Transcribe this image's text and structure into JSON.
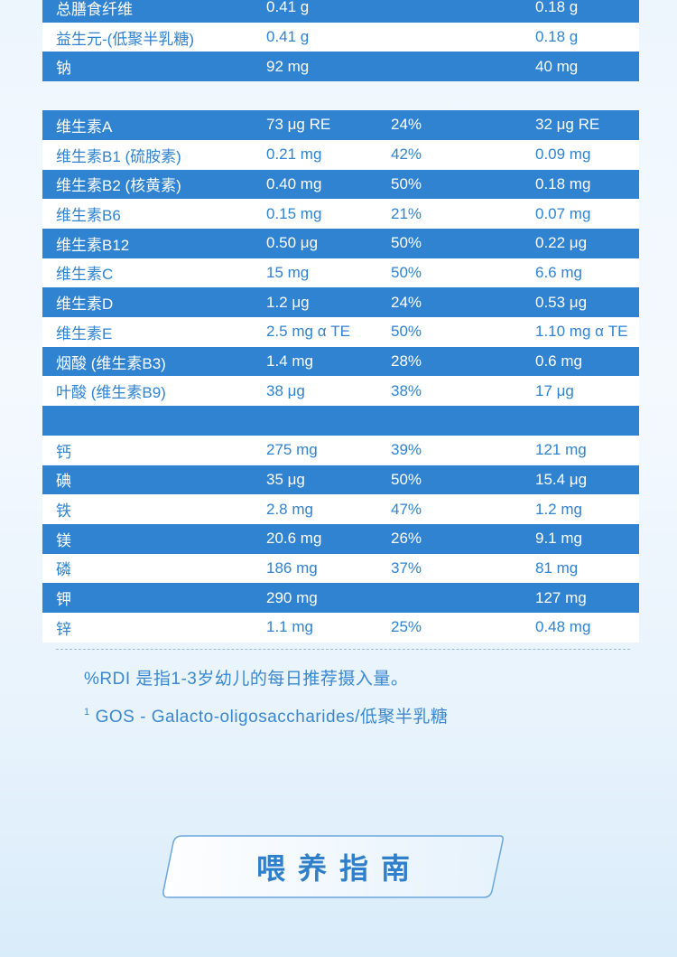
{
  "rows": [
    {
      "name": "总膳食纤维",
      "amount": "0.41 g",
      "pct": "",
      "per100": "0.18 g",
      "style": "blue"
    },
    {
      "name": "益生元-(低聚半乳糖)",
      "amount": "0.41 g",
      "pct": "",
      "per100": "0.18 g",
      "style": "light"
    },
    {
      "name": "钠",
      "amount": "92 mg",
      "pct": "",
      "per100": "40 mg",
      "style": "blue"
    },
    {
      "name": "",
      "amount": "",
      "pct": "",
      "per100": "",
      "style": "gap"
    },
    {
      "name": "维生素A",
      "amount": "73 μg RE",
      "pct": "24%",
      "per100": "32 μg RE",
      "style": "blue"
    },
    {
      "name": "维生素B1 (硫胺素)",
      "amount": "0.21 mg",
      "pct": "42%",
      "per100": "0.09 mg",
      "style": "light"
    },
    {
      "name": "维生素B2 (核黄素)",
      "amount": "0.40 mg",
      "pct": "50%",
      "per100": "0.18 mg",
      "style": "blue"
    },
    {
      "name": "维生素B6",
      "amount": "0.15 mg",
      "pct": "21%",
      "per100": "0.07 mg",
      "style": "light"
    },
    {
      "name": "维生素B12",
      "amount": "0.50 μg",
      "pct": "50%",
      "per100": "0.22 μg",
      "style": "blue"
    },
    {
      "name": "维生素C",
      "amount": "15 mg",
      "pct": "50%",
      "per100": "6.6 mg",
      "style": "light"
    },
    {
      "name": "维生素D",
      "amount": "1.2 μg",
      "pct": "24%",
      "per100": "0.53 μg",
      "style": "blue"
    },
    {
      "name": "维生素E",
      "amount": "2.5 mg α TE",
      "pct": "50%",
      "per100": "1.10 mg α TE",
      "style": "light"
    },
    {
      "name": "烟酸 (维生素B3)",
      "amount": "1.4 mg",
      "pct": "28%",
      "per100": "0.6 mg",
      "style": "blue"
    },
    {
      "name": "叶酸 (维生素B9)",
      "amount": "38 μg",
      "pct": "38%",
      "per100": "17 μg",
      "style": "light"
    },
    {
      "name": "",
      "amount": "",
      "pct": "",
      "per100": "",
      "style": "blue"
    },
    {
      "name": "钙",
      "amount": "275 mg",
      "pct": "39%",
      "per100": "121 mg",
      "style": "light"
    },
    {
      "name": "碘",
      "amount": "35 μg",
      "pct": "50%",
      "per100": "15.4 μg",
      "style": "blue"
    },
    {
      "name": "铁",
      "amount": "2.8 mg",
      "pct": "47%",
      "per100": "1.2 mg",
      "style": "light"
    },
    {
      "name": "镁",
      "amount": "20.6 mg",
      "pct": "26%",
      "per100": "9.1 mg",
      "style": "blue"
    },
    {
      "name": "磷",
      "amount": "186 mg",
      "pct": "37%",
      "per100": "81 mg",
      "style": "light"
    },
    {
      "name": "钾",
      "amount": "290 mg",
      "pct": "",
      "per100": "127 mg",
      "style": "blue"
    },
    {
      "name": "锌",
      "amount": "1.1 mg",
      "pct": "25%",
      "per100": "0.48 mg",
      "style": "light"
    }
  ],
  "notes": {
    "rdi": "%RDI 是指1-3岁幼儿的每日推荐摄入量。",
    "gos_sup": "1",
    "gos": "GOS - Galacto-oligosaccharides/低聚半乳糖"
  },
  "guide": {
    "title": "喂养指南"
  },
  "colors": {
    "blue_row": "#2f83d0",
    "text_blue": "#2f83d0",
    "white": "#ffffff"
  }
}
